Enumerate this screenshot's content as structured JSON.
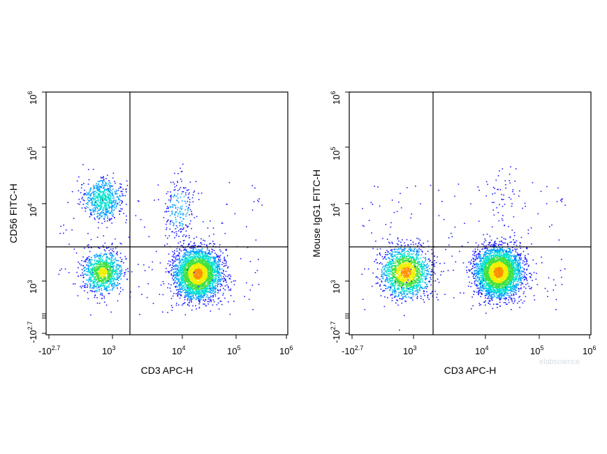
{
  "figure": {
    "watermark": "elabscience"
  },
  "chart_data": [
    {
      "type": "scatter",
      "xlabel": "CD3 APC-H",
      "ylabel": "CD56 FITC-H",
      "xscale": "biexponential",
      "yscale": "biexponential",
      "x_ticks": [
        {
          "base": "-10",
          "exp": "2.7"
        },
        {
          "base": "10",
          "exp": "3"
        },
        {
          "base": "10",
          "exp": "4"
        },
        {
          "base": "10",
          "exp": "5"
        },
        {
          "base": "10",
          "exp": "6"
        }
      ],
      "y_ticks": [
        {
          "base": "-10",
          "exp": "2.7"
        },
        {
          "base": "10",
          "exp": "3"
        },
        {
          "base": "10",
          "exp": "4"
        },
        {
          "base": "10",
          "exp": "5"
        },
        {
          "base": "10",
          "exp": "6"
        }
      ],
      "gate": {
        "x": 2000,
        "y": 2500
      },
      "quadrants": [
        "Q1 upper-left",
        "Q2 upper-right",
        "Q3 lower-right",
        "Q4 lower-left"
      ],
      "colormap": [
        "#1a1aff",
        "#00a0ff",
        "#00e0d0",
        "#40e040",
        "#f0f000",
        "#ff9000",
        "#ff2000"
      ],
      "populations": [
        {
          "name": "CD3- CD56+",
          "x_center": 450,
          "y_center": 10000,
          "share": 0.12
        },
        {
          "name": "CD3+ CD56+",
          "x_center": 9000,
          "y_center": 7000,
          "share": 0.04
        },
        {
          "name": "CD3- CD56-",
          "x_center": 450,
          "y_center": 800,
          "share": 0.2
        },
        {
          "name": "CD3+ CD56-",
          "x_center": 20000,
          "y_center": 700,
          "share": 0.6
        }
      ],
      "grid": false,
      "legend": "none"
    },
    {
      "type": "scatter",
      "xlabel": "CD3 APC-H",
      "ylabel": "Mouse IgG1 FITC-H",
      "xscale": "biexponential",
      "yscale": "biexponential",
      "x_ticks": [
        {
          "base": "-10",
          "exp": "2.7"
        },
        {
          "base": "10",
          "exp": "3"
        },
        {
          "base": "10",
          "exp": "4"
        },
        {
          "base": "10",
          "exp": "5"
        },
        {
          "base": "10",
          "exp": "6"
        }
      ],
      "y_ticks": [
        {
          "base": "-10",
          "exp": "2.7"
        },
        {
          "base": "10",
          "exp": "3"
        },
        {
          "base": "10",
          "exp": "4"
        },
        {
          "base": "10",
          "exp": "5"
        },
        {
          "base": "10",
          "exp": "6"
        }
      ],
      "gate": {
        "x": 2000,
        "y": 2500
      },
      "quadrants": [
        "Q1 upper-left",
        "Q2 upper-right",
        "Q3 lower-right",
        "Q4 lower-left"
      ],
      "colormap": [
        "#1a1aff",
        "#00a0ff",
        "#00e0d0",
        "#40e040",
        "#f0f000",
        "#ff9000",
        "#ff2000"
      ],
      "populations": [
        {
          "name": "CD3- IgG1-",
          "x_center": 450,
          "y_center": 800,
          "share": 0.33
        },
        {
          "name": "CD3+ IgG1-",
          "x_center": 18000,
          "y_center": 800,
          "share": 0.66
        },
        {
          "name": "CD3+ IgG1 dim",
          "x_center": 20000,
          "y_center": 12000,
          "share": 0.01
        }
      ],
      "grid": false,
      "legend": "none"
    }
  ]
}
